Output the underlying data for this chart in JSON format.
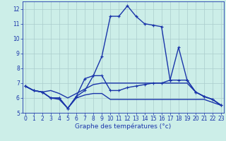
{
  "title": "Graphe des températures (°c)",
  "hours": [
    0,
    1,
    2,
    3,
    4,
    5,
    6,
    7,
    8,
    9,
    10,
    11,
    12,
    13,
    14,
    15,
    16,
    17,
    18,
    19,
    20,
    21,
    22,
    23
  ],
  "line1": [
    6.8,
    6.5,
    6.4,
    6.0,
    6.0,
    5.3,
    6.1,
    7.3,
    7.5,
    8.8,
    11.5,
    11.5,
    12.2,
    11.5,
    11.0,
    10.9,
    10.8,
    7.2,
    9.4,
    7.2,
    6.4,
    6.1,
    5.9,
    5.5
  ],
  "line2": [
    6.8,
    6.5,
    6.4,
    6.5,
    6.3,
    6.0,
    6.3,
    6.6,
    6.9,
    7.0,
    7.0,
    7.0,
    7.0,
    7.0,
    7.0,
    7.0,
    7.0,
    7.0,
    7.0,
    7.0,
    6.4,
    6.1,
    5.9,
    5.5
  ],
  "line3": [
    6.8,
    6.5,
    6.4,
    6.0,
    6.0,
    5.3,
    6.1,
    6.5,
    7.5,
    7.5,
    6.5,
    6.5,
    6.7,
    6.8,
    6.9,
    7.0,
    7.0,
    7.2,
    7.2,
    7.2,
    6.4,
    6.1,
    5.9,
    5.5
  ],
  "line4": [
    6.8,
    6.5,
    6.4,
    6.0,
    5.9,
    5.3,
    6.0,
    6.2,
    6.3,
    6.3,
    5.9,
    5.9,
    5.9,
    5.9,
    5.9,
    5.9,
    5.9,
    5.9,
    5.9,
    5.9,
    5.9,
    5.9,
    5.7,
    5.5
  ],
  "ylim": [
    5,
    12.5
  ],
  "yticks": [
    5,
    6,
    7,
    8,
    9,
    10,
    11,
    12
  ],
  "xlim": [
    -0.3,
    23.3
  ],
  "xticks": [
    0,
    1,
    2,
    3,
    4,
    5,
    6,
    7,
    8,
    9,
    10,
    11,
    12,
    13,
    14,
    15,
    16,
    17,
    18,
    19,
    20,
    21,
    22,
    23
  ],
  "bg_color": "#cceee8",
  "grid_color": "#aacccc",
  "line_color": "#1a35aa",
  "tick_fontsize": 5.5,
  "label_fontsize": 6.5
}
